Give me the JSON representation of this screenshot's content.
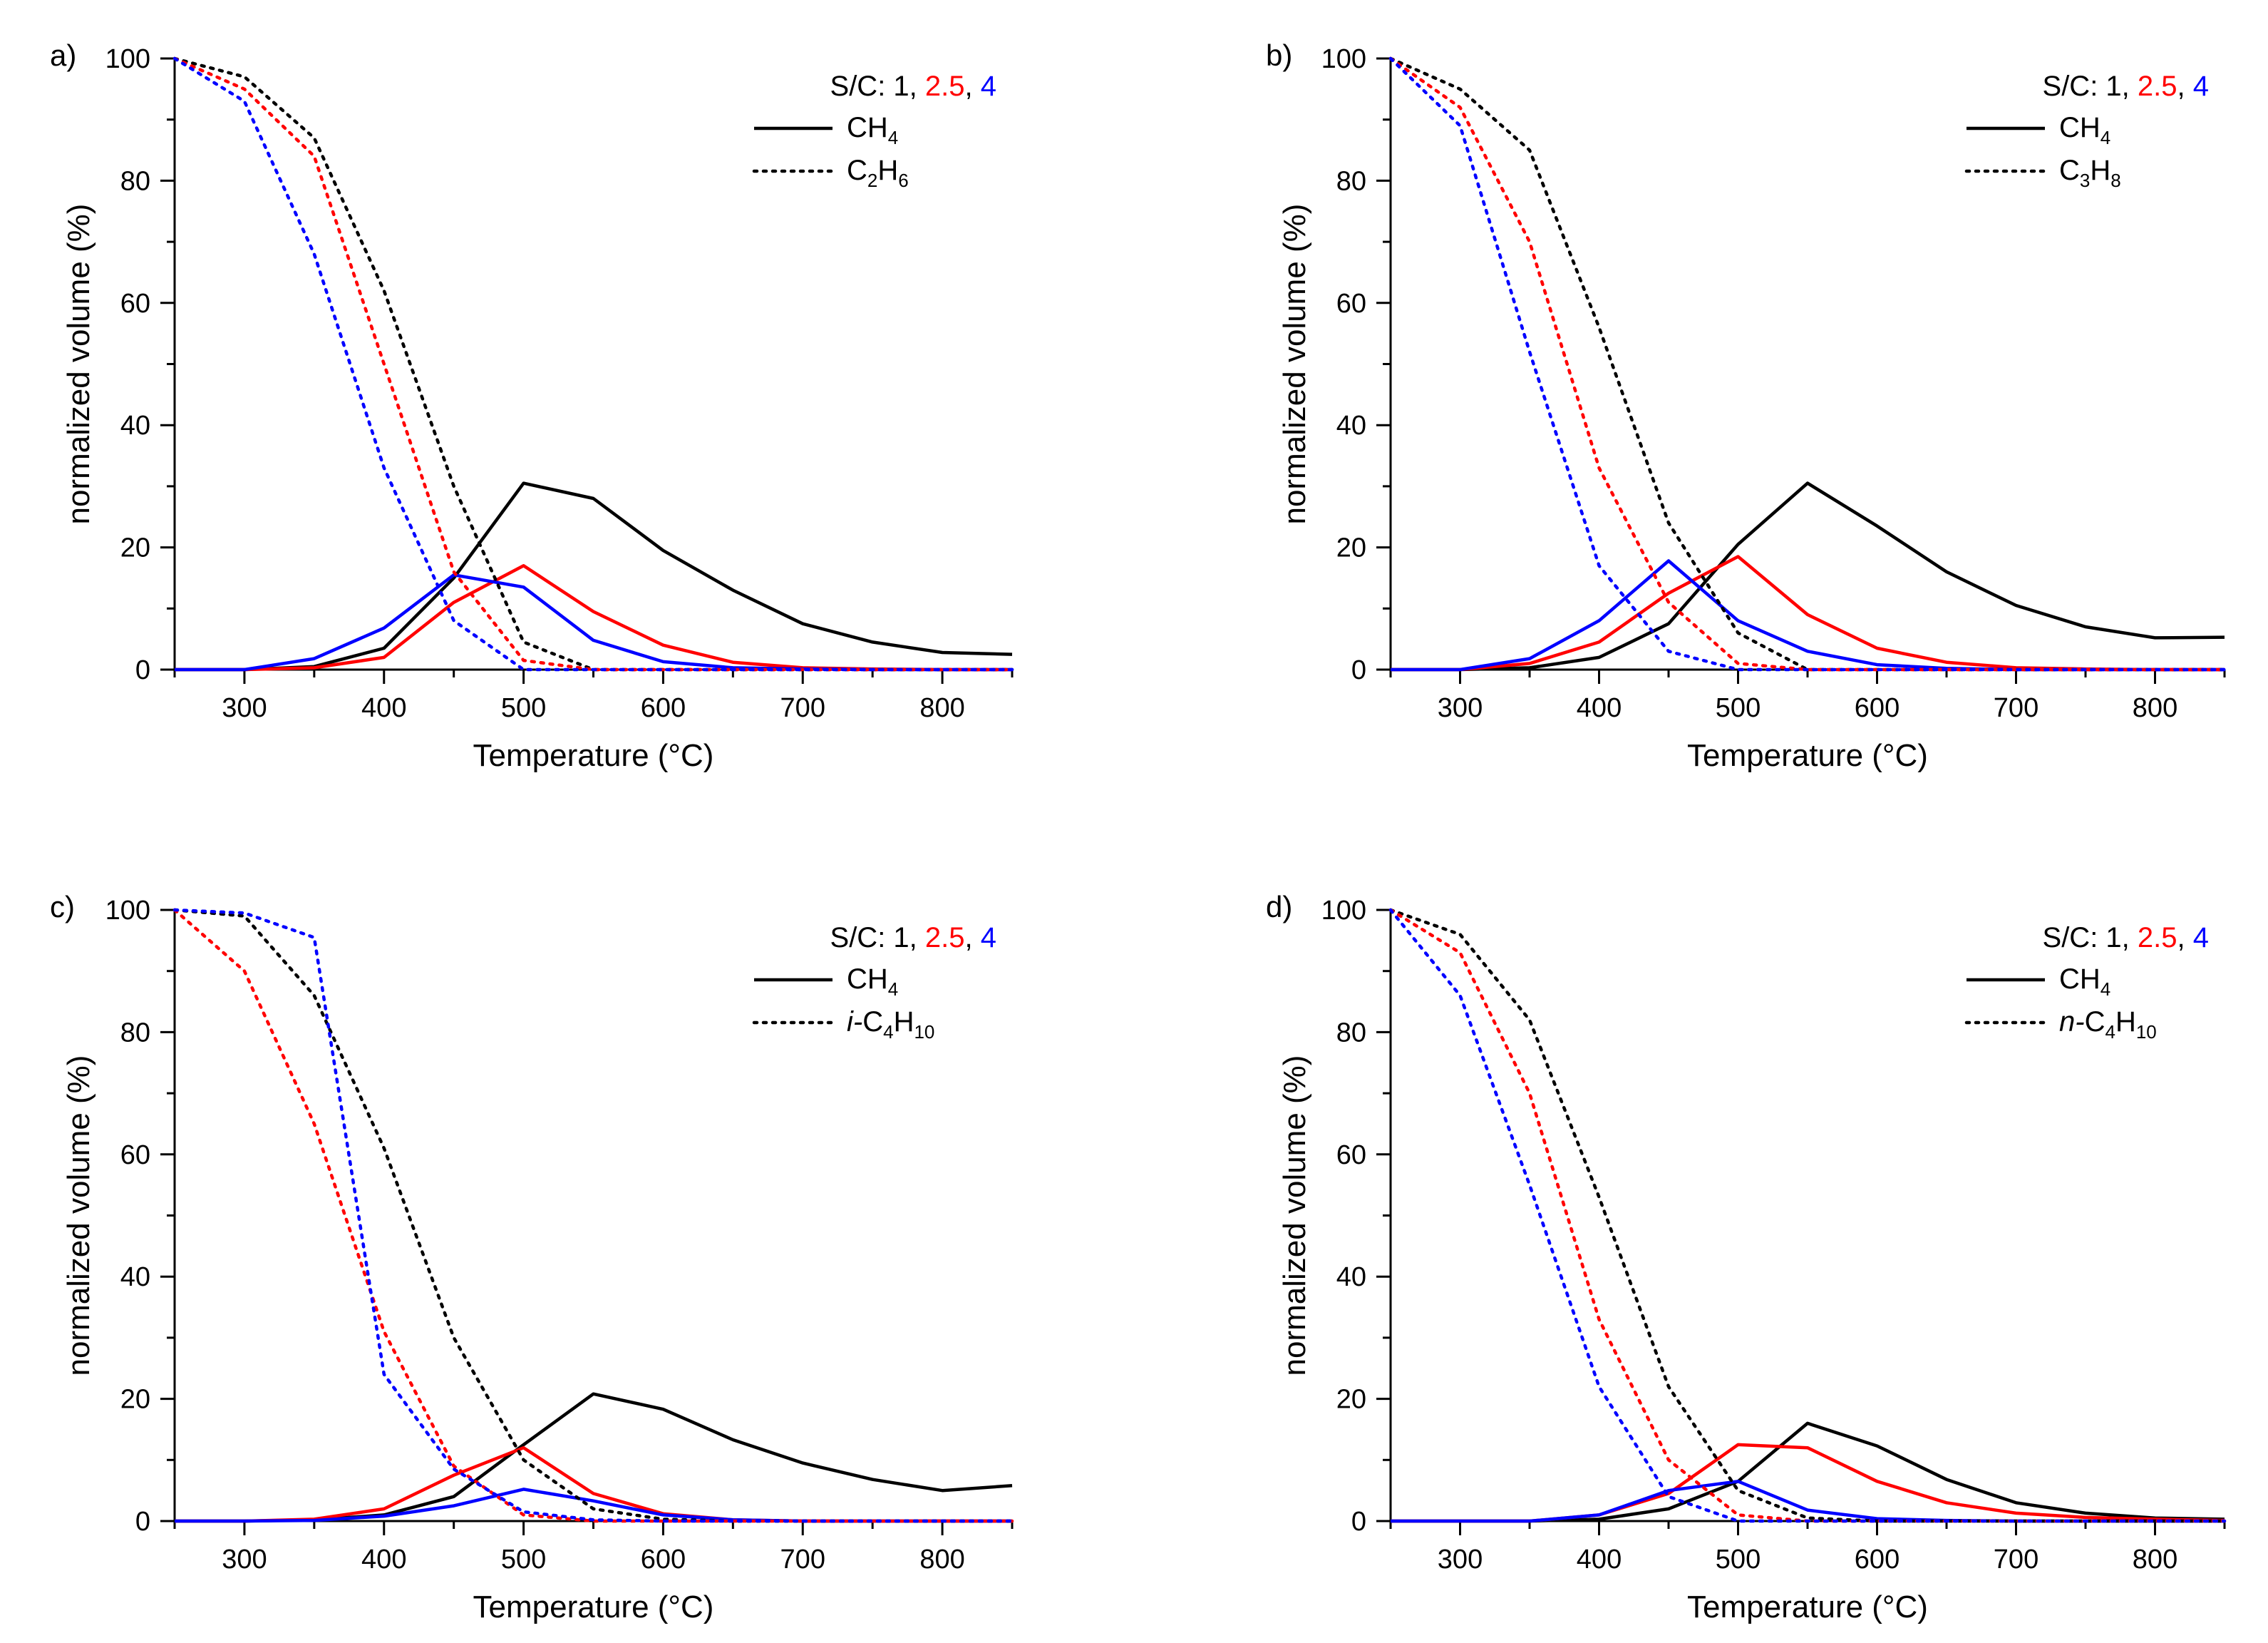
{
  "figure": {
    "panels": [
      "a",
      "b",
      "c",
      "d"
    ]
  },
  "chart_data": [
    {
      "type": "line",
      "panel_label": "a)",
      "xlabel": "Temperature (°C)",
      "ylabel": "normalized volume (%)",
      "xlim": [
        250,
        850
      ],
      "ylim": [
        0,
        100
      ],
      "xticks": [
        300,
        400,
        500,
        600,
        700,
        800
      ],
      "yticks": [
        0,
        20,
        40,
        60,
        80,
        100
      ],
      "x": [
        250,
        300,
        350,
        400,
        450,
        500,
        550,
        600,
        650,
        700,
        750,
        800,
        850
      ],
      "legend": {
        "position": "top-right",
        "sc_prefix": "S/C: ",
        "sc_values": [
          {
            "text": "1",
            "color": "#000000"
          },
          {
            "text": "2.5",
            "color": "#ff0000"
          },
          {
            "text": "4",
            "color": "#0000ff"
          }
        ],
        "line_label": {
          "base": "CH",
          "sub": "4",
          "prefix": ""
        },
        "dotted_label": {
          "prefix": "",
          "parts": [
            [
              "C",
              "2"
            ],
            [
              "H",
              "6"
            ]
          ]
        }
      },
      "series": [
        {
          "name": "CH4 S/C 1",
          "sc": "1",
          "style": "solid",
          "color": "#000000",
          "values": [
            0,
            0,
            0.5,
            3.5,
            15,
            30.5,
            28,
            19.5,
            13,
            7.5,
            4.5,
            2.8,
            2.5
          ]
        },
        {
          "name": "CH4 S/C 2.5",
          "sc": "2.5",
          "style": "solid",
          "color": "#ff0000",
          "values": [
            0,
            0,
            0.3,
            2,
            11,
            17,
            9.5,
            4,
            1.2,
            0.3,
            0.1,
            0,
            0
          ]
        },
        {
          "name": "CH4 S/C 4",
          "sc": "4",
          "style": "solid",
          "color": "#0000ff",
          "values": [
            0,
            0,
            1.8,
            6.8,
            15.5,
            13.5,
            4.8,
            1.3,
            0.3,
            0.1,
            0,
            0,
            0
          ]
        },
        {
          "name": "C2H6 S/C 1",
          "sc": "1",
          "style": "dotted",
          "color": "#000000",
          "values": [
            100,
            97,
            87,
            62,
            30,
            4.5,
            0,
            0,
            0,
            0,
            0,
            0,
            0
          ]
        },
        {
          "name": "C2H6 S/C 2.5",
          "sc": "2.5",
          "style": "dotted",
          "color": "#ff0000",
          "values": [
            100,
            95,
            84,
            50,
            16,
            1.5,
            0,
            0,
            0,
            0,
            0,
            0,
            0
          ]
        },
        {
          "name": "C2H6 S/C 4",
          "sc": "4",
          "style": "dotted",
          "color": "#0000ff",
          "values": [
            100,
            93,
            68,
            33,
            8,
            0,
            0,
            0,
            0,
            0,
            0,
            0,
            0
          ]
        }
      ]
    },
    {
      "type": "line",
      "panel_label": "b)",
      "xlabel": "Temperature (°C)",
      "ylabel": "normalized volume (%)",
      "xlim": [
        250,
        850
      ],
      "ylim": [
        0,
        100
      ],
      "xticks": [
        300,
        400,
        500,
        600,
        700,
        800
      ],
      "yticks": [
        0,
        20,
        40,
        60,
        80,
        100
      ],
      "x": [
        250,
        300,
        350,
        400,
        450,
        500,
        550,
        600,
        650,
        700,
        750,
        800,
        850
      ],
      "legend": {
        "position": "top-right",
        "sc_prefix": "S/C: ",
        "sc_values": [
          {
            "text": "1",
            "color": "#000000"
          },
          {
            "text": "2.5",
            "color": "#ff0000"
          },
          {
            "text": "4",
            "color": "#0000ff"
          }
        ],
        "line_label": {
          "base": "CH",
          "sub": "4",
          "prefix": ""
        },
        "dotted_label": {
          "prefix": "",
          "parts": [
            [
              "C",
              "3"
            ],
            [
              "H",
              "8"
            ]
          ]
        }
      },
      "series": [
        {
          "name": "CH4 S/C 1",
          "sc": "1",
          "style": "solid",
          "color": "#000000",
          "values": [
            0,
            0,
            0.3,
            2,
            7.5,
            20.5,
            30.5,
            23.5,
            16,
            10.5,
            7,
            5.2,
            5.3
          ]
        },
        {
          "name": "CH4 S/C 2.5",
          "sc": "2.5",
          "style": "solid",
          "color": "#ff0000",
          "values": [
            0,
            0,
            1,
            4.5,
            12.5,
            18.5,
            9,
            3.5,
            1.2,
            0.3,
            0.1,
            0,
            0
          ]
        },
        {
          "name": "CH4 S/C 4",
          "sc": "4",
          "style": "solid",
          "color": "#0000ff",
          "values": [
            0,
            0,
            1.8,
            8,
            17.8,
            8,
            3,
            0.8,
            0.2,
            0,
            0,
            0,
            0
          ]
        },
        {
          "name": "C3H8 S/C 1",
          "sc": "1",
          "style": "dotted",
          "color": "#000000",
          "values": [
            100,
            95,
            85,
            56,
            24,
            6,
            0,
            0,
            0,
            0,
            0,
            0,
            0
          ]
        },
        {
          "name": "C3H8 S/C 2.5",
          "sc": "2.5",
          "style": "dotted",
          "color": "#ff0000",
          "values": [
            100,
            92,
            70,
            33,
            11,
            1,
            0,
            0,
            0,
            0,
            0,
            0,
            0
          ]
        },
        {
          "name": "C3H8 S/C 4",
          "sc": "4",
          "style": "dotted",
          "color": "#0000ff",
          "values": [
            100,
            89,
            52,
            17,
            3,
            0,
            0,
            0,
            0,
            0,
            0,
            0,
            0
          ]
        }
      ]
    },
    {
      "type": "line",
      "panel_label": "c)",
      "xlabel": "Temperature (°C)",
      "ylabel": "normalized volume (%)",
      "xlim": [
        250,
        850
      ],
      "ylim": [
        0,
        100
      ],
      "xticks": [
        300,
        400,
        500,
        600,
        700,
        800
      ],
      "yticks": [
        0,
        20,
        40,
        60,
        80,
        100
      ],
      "x": [
        250,
        300,
        350,
        400,
        450,
        500,
        550,
        600,
        650,
        700,
        750,
        800,
        850
      ],
      "legend": {
        "position": "top-right",
        "sc_prefix": "S/C: ",
        "sc_values": [
          {
            "text": "1",
            "color": "#000000"
          },
          {
            "text": "2.5",
            "color": "#ff0000"
          },
          {
            "text": "4",
            "color": "#0000ff"
          }
        ],
        "line_label": {
          "base": "CH",
          "sub": "4",
          "prefix": ""
        },
        "dotted_label": {
          "prefix": "i-",
          "parts": [
            [
              "C",
              "4"
            ],
            [
              "H",
              "10"
            ]
          ]
        }
      },
      "series": [
        {
          "name": "CH4 S/C 1",
          "sc": "1",
          "style": "solid",
          "color": "#000000",
          "values": [
            0,
            0,
            0.2,
            1,
            4,
            12.5,
            20.8,
            18.3,
            13.3,
            9.5,
            6.8,
            5,
            5.8
          ]
        },
        {
          "name": "CH4 S/C 2.5",
          "sc": "2.5",
          "style": "solid",
          "color": "#ff0000",
          "values": [
            0,
            0,
            0.3,
            2,
            7.5,
            12,
            4.5,
            1.2,
            0.2,
            0,
            0,
            0,
            0
          ]
        },
        {
          "name": "CH4 S/C 4",
          "sc": "4",
          "style": "solid",
          "color": "#0000ff",
          "values": [
            0,
            0,
            0.1,
            0.8,
            2.5,
            5.2,
            3.3,
            1,
            0.2,
            0,
            0,
            0,
            0
          ]
        },
        {
          "name": "i-C4H10 S/C 1",
          "sc": "1",
          "style": "dotted",
          "color": "#000000",
          "values": [
            100,
            99,
            86,
            61,
            30,
            10,
            2,
            0.3,
            0,
            0,
            0,
            0,
            0
          ]
        },
        {
          "name": "i-C4H10 S/C 2.5",
          "sc": "2.5",
          "style": "dotted",
          "color": "#ff0000",
          "values": [
            100,
            90,
            65,
            31,
            9,
            1,
            0,
            0,
            0,
            0,
            0,
            0,
            0
          ]
        },
        {
          "name": "i-C4H10 S/C 4",
          "sc": "4",
          "style": "dotted",
          "color": "#0000ff",
          "values": [
            100,
            99.5,
            95.5,
            24,
            8.5,
            1.5,
            0.2,
            0,
            0,
            0,
            0,
            0,
            0
          ]
        }
      ]
    },
    {
      "type": "line",
      "panel_label": "d)",
      "xlabel": "Temperature (°C)",
      "ylabel": "normalized volume (%)",
      "xlim": [
        250,
        850
      ],
      "ylim": [
        0,
        100
      ],
      "xticks": [
        300,
        400,
        500,
        600,
        700,
        800
      ],
      "yticks": [
        0,
        20,
        40,
        60,
        80,
        100
      ],
      "x": [
        250,
        300,
        350,
        400,
        450,
        500,
        550,
        600,
        650,
        700,
        750,
        800,
        850
      ],
      "legend": {
        "position": "top-right",
        "sc_prefix": "S/C: ",
        "sc_values": [
          {
            "text": "1",
            "color": "#000000"
          },
          {
            "text": "2.5",
            "color": "#ff0000"
          },
          {
            "text": "4",
            "color": "#0000ff"
          }
        ],
        "line_label": {
          "base": "CH",
          "sub": "4",
          "prefix": ""
        },
        "dotted_label": {
          "prefix": "n-",
          "parts": [
            [
              "C",
              "4"
            ],
            [
              "H",
              "10"
            ]
          ]
        }
      },
      "series": [
        {
          "name": "CH4 S/C 1",
          "sc": "1",
          "style": "solid",
          "color": "#000000",
          "values": [
            0,
            0,
            0,
            0.3,
            2,
            6.5,
            16,
            12.3,
            6.8,
            3,
            1.3,
            0.5,
            0.3
          ]
        },
        {
          "name": "CH4 S/C 2.5",
          "sc": "2.5",
          "style": "solid",
          "color": "#ff0000",
          "values": [
            0,
            0,
            0,
            1,
            4.5,
            12.5,
            12,
            6.5,
            3,
            1.3,
            0.6,
            0.3,
            0.1
          ]
        },
        {
          "name": "CH4 S/C 4",
          "sc": "4",
          "style": "solid",
          "color": "#0000ff",
          "values": [
            0,
            0,
            0,
            1,
            5,
            6.5,
            1.8,
            0.4,
            0.1,
            0,
            0,
            0,
            0
          ]
        },
        {
          "name": "n-C4H10 S/C 1",
          "sc": "1",
          "style": "dotted",
          "color": "#000000",
          "values": [
            100,
            96,
            82,
            53,
            22,
            5,
            0.5,
            0,
            0,
            0,
            0,
            0,
            0
          ]
        },
        {
          "name": "n-C4H10 S/C 2.5",
          "sc": "2.5",
          "style": "dotted",
          "color": "#ff0000",
          "values": [
            100,
            93,
            70,
            33,
            10,
            1,
            0,
            0,
            0,
            0,
            0,
            0,
            0
          ]
        },
        {
          "name": "n-C4H10 S/C 4",
          "sc": "4",
          "style": "dotted",
          "color": "#0000ff",
          "values": [
            100,
            86,
            55,
            22,
            4,
            0,
            0,
            0,
            0,
            0,
            0,
            0,
            0
          ]
        }
      ]
    }
  ]
}
